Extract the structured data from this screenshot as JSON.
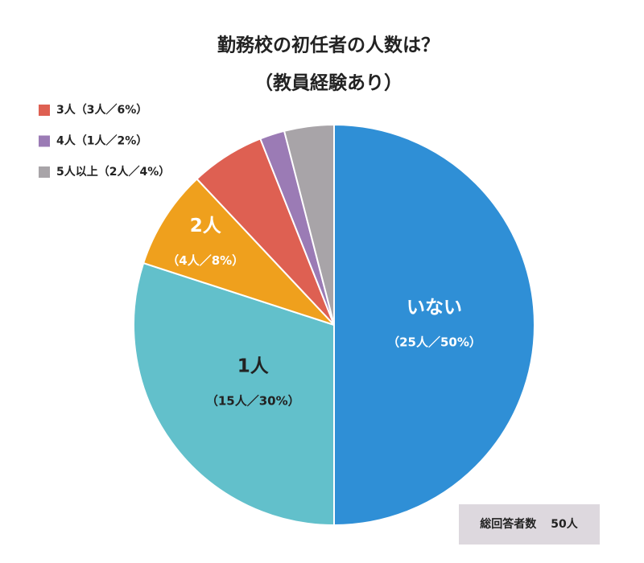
{
  "chart_data": {
    "type": "pie",
    "title": "勤務校の初任者の人数は？",
    "subtitle": "（教員経験あり）",
    "categories": [
      "いない",
      "1人",
      "2人",
      "3人",
      "4人",
      "5人以上"
    ],
    "values": [
      50,
      30,
      8,
      6,
      2,
      4
    ],
    "value_labels": [
      "（25人／50%）",
      "（15人／30%）",
      "（4人／8%）",
      "（3人／6%）",
      "（1人／2%）",
      "（2人／4%）"
    ],
    "colors": [
      "#2f8fd6",
      "#62c0cb",
      "#efa01d",
      "#de6052",
      "#9b7bb5",
      "#a8a4a8"
    ],
    "total_label": "総回答者数",
    "total": "50人"
  }
}
